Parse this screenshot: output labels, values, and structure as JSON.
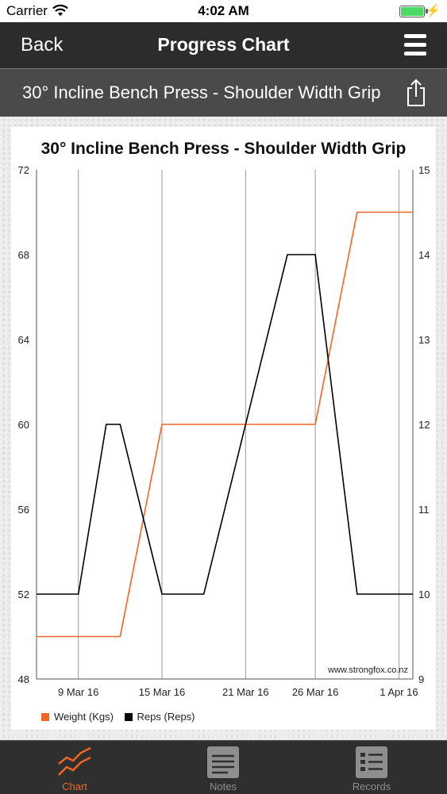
{
  "status_bar": {
    "carrier": "Carrier",
    "time": "4:02 AM"
  },
  "nav": {
    "back_label": "Back",
    "title": "Progress Chart"
  },
  "exercise_header": {
    "name": "30° Incline Bench Press - Shoulder Width Grip"
  },
  "chart_data": {
    "type": "line",
    "title": "30° Incline Bench Press - Shoulder Width Grip",
    "x_ticks": [
      "9 Mar 16",
      "15 Mar 16",
      "21 Mar 16",
      "26 Mar 16",
      "1 Apr 16"
    ],
    "left_axis": {
      "range": [
        48,
        72
      ],
      "ticks": [
        "48",
        "52",
        "56",
        "60",
        "64",
        "68",
        "72"
      ]
    },
    "right_axis": {
      "range": [
        9,
        15
      ],
      "ticks": [
        "9",
        "10",
        "11",
        "12",
        "13",
        "14",
        "15"
      ]
    },
    "series": [
      {
        "name": "Weight (Kgs)",
        "color": "#f26522",
        "axis": "left",
        "points": [
          [
            "6 Mar 16",
            50
          ],
          [
            "12 Mar 16",
            50
          ],
          [
            "15 Mar 16",
            60
          ],
          [
            "18 Mar 16",
            60
          ],
          [
            "24 Mar 16",
            60
          ],
          [
            "26 Mar 16",
            60
          ],
          [
            "29 Mar 16",
            70
          ],
          [
            "1 Apr 16",
            70
          ],
          [
            "2 Apr 16",
            70
          ]
        ]
      },
      {
        "name": "Reps (Reps)",
        "color": "#000000",
        "axis": "right",
        "points": [
          [
            "6 Mar 16",
            10
          ],
          [
            "9 Mar 16",
            10
          ],
          [
            "11 Mar 16",
            12
          ],
          [
            "12 Mar 16",
            12
          ],
          [
            "15 Mar 16",
            10
          ],
          [
            "18 Mar 16",
            10
          ],
          [
            "24 Mar 16",
            14
          ],
          [
            "26 Mar 16",
            14
          ],
          [
            "29 Mar 16",
            10
          ],
          [
            "1 Apr 16",
            10
          ],
          [
            "2 Apr 16",
            10
          ]
        ]
      }
    ],
    "grid": "vertical lines at x ticks",
    "watermark": "www.strongfox.co.nz",
    "legend_position": "bottom-left"
  },
  "tabs": [
    {
      "label": "Chart",
      "icon": "chart-icon",
      "active": true
    },
    {
      "label": "Notes",
      "icon": "notes-icon",
      "active": false
    },
    {
      "label": "Records",
      "icon": "records-icon",
      "active": false
    }
  ],
  "colors": {
    "accent": "#f26522",
    "nav_bg": "#2c2c2c",
    "subheader_bg": "#4a4a4a",
    "tabbar_bg": "#2f2f2f",
    "tab_inactive": "#8e8e8e"
  }
}
